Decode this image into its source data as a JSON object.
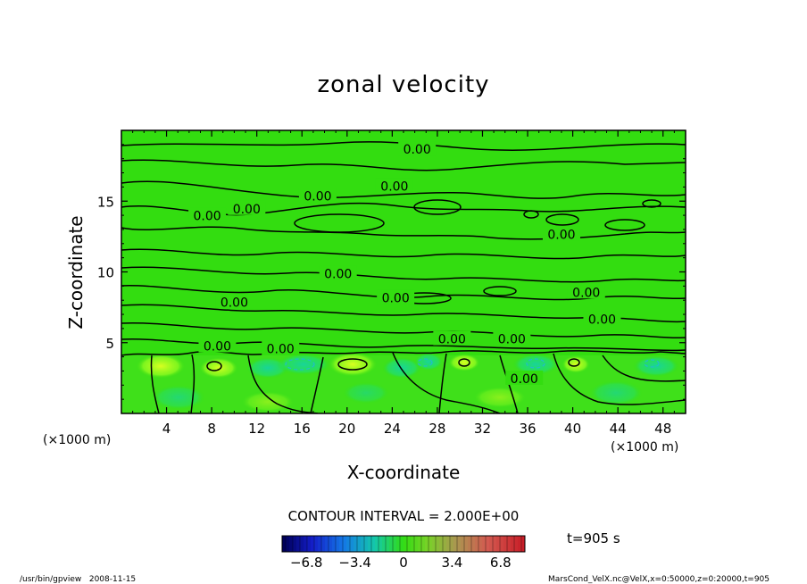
{
  "chart_data": {
    "type": "heatmap",
    "title": "zonal velocity",
    "xlabel": "X-coordinate",
    "ylabel": "Z-coordinate",
    "x_unit": "(×1000 m)",
    "y_unit": "(×1000 m)",
    "xlim": [
      0,
      50
    ],
    "ylim": [
      0,
      20
    ],
    "x_ticks": [
      4,
      8,
      12,
      16,
      20,
      24,
      28,
      32,
      36,
      40,
      44,
      48
    ],
    "y_ticks": [
      5,
      10,
      15
    ],
    "contour_interval_text": "CONTOUR INTERVAL = 2.000E+00",
    "time_label": "t=905 s",
    "colorbar": {
      "min": -8.5,
      "max": 8.5,
      "ticks": [
        -6.8,
        -3.4,
        0,
        3.4,
        6.8
      ],
      "tick_labels": [
        "−6.8",
        "−3.4",
        "0",
        "3.4",
        "6.8"
      ]
    },
    "contour_labels": [
      {
        "x": 26.2,
        "y": 18.6,
        "text": "0.00"
      },
      {
        "x": 24.2,
        "y": 16.0,
        "text": "0.00"
      },
      {
        "x": 17.4,
        "y": 15.3,
        "text": "0.00"
      },
      {
        "x": 11.1,
        "y": 14.4,
        "text": "0.00"
      },
      {
        "x": 7.6,
        "y": 13.9,
        "text": "0.00"
      },
      {
        "x": 19.2,
        "y": 9.8,
        "text": "0.00"
      },
      {
        "x": 24.3,
        "y": 8.1,
        "text": "0.00"
      },
      {
        "x": 10.0,
        "y": 7.8,
        "text": "0.00"
      },
      {
        "x": 8.5,
        "y": 4.7,
        "text": "0.00"
      },
      {
        "x": 14.1,
        "y": 4.5,
        "text": "0.00"
      },
      {
        "x": 29.3,
        "y": 5.2,
        "text": "0.00"
      },
      {
        "x": 34.6,
        "y": 5.2,
        "text": "0.00"
      },
      {
        "x": 39.0,
        "y": 12.6,
        "text": "0.00"
      },
      {
        "x": 41.2,
        "y": 8.5,
        "text": "0.00"
      },
      {
        "x": 42.6,
        "y": 6.6,
        "text": "0.00"
      },
      {
        "x": 35.7,
        "y": 2.4,
        "text": "0.00"
      }
    ]
  },
  "footer": {
    "left": "/usr/bin/gpview   2008-11-15",
    "right": "MarsCond_VelX.nc@VelX,x=0:50000,z=0:20000,t=905"
  }
}
